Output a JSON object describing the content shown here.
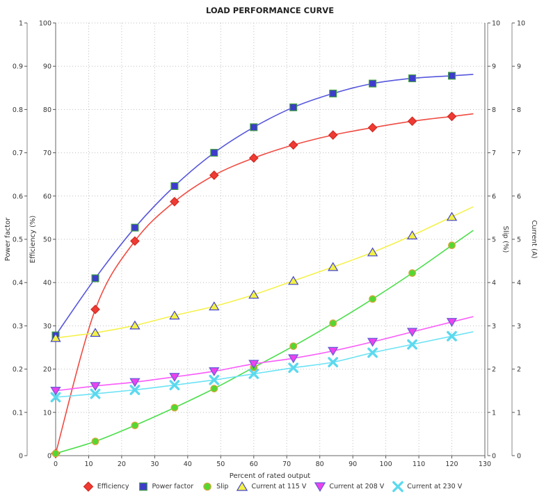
{
  "title": "LOAD PERFORMANCE CURVE",
  "chart_data": {
    "type": "line",
    "title": "LOAD PERFORMANCE CURVE",
    "xlabel": "Percent of rated output",
    "xlim": [
      0,
      130
    ],
    "x_tick_labels": [
      "0",
      "10",
      "20",
      "30",
      "40",
      "50",
      "60",
      "70",
      "80",
      "90",
      "100",
      "110",
      "120",
      "130"
    ],
    "grid": "dotted, both directions, every 10 units",
    "legend_position": "bottom-center",
    "x": [
      0,
      12,
      24,
      36,
      48,
      60,
      72,
      84,
      96,
      108,
      120
    ],
    "axes": [
      {
        "id": "pf",
        "label": "Power factor",
        "side": "left-outer",
        "range": [
          0,
          1
        ],
        "ticks": [
          "1",
          "0.9",
          "0.8",
          "0.7",
          "0.6",
          "0.5",
          "0.4",
          "0.3",
          "0.2",
          "0.1",
          "0"
        ]
      },
      {
        "id": "eff",
        "label": "Efficiency (%)",
        "side": "left-inner",
        "range": [
          0,
          100
        ],
        "ticks": [
          "100",
          "90",
          "80",
          "70",
          "60",
          "50",
          "40",
          "30",
          "20",
          "10",
          "0"
        ]
      },
      {
        "id": "slip",
        "label": "Slip (%)",
        "side": "right-inner",
        "range": [
          0,
          10
        ],
        "ticks": [
          "10",
          "9",
          "8",
          "7",
          "6",
          "5",
          "4",
          "3",
          "2",
          "1",
          "0"
        ]
      },
      {
        "id": "cur",
        "label": "Current (A)",
        "side": "right-outer",
        "range": [
          0,
          10
        ],
        "ticks": [
          "10",
          "9",
          "8",
          "7",
          "6",
          "5",
          "4",
          "3",
          "2",
          "1",
          "0"
        ]
      }
    ],
    "series": [
      {
        "name": "Efficiency",
        "axis": "eff",
        "marker": "diamond",
        "line_color": "#f04a41",
        "marker_fill": "#ee3b33",
        "marker_edge": "#d02a22",
        "values": [
          0.5,
          33.8,
          49.6,
          58.7,
          64.8,
          68.8,
          71.8,
          74.1,
          75.8,
          77.3,
          78.4
        ]
      },
      {
        "name": "Power factor",
        "axis": "pf",
        "marker": "square",
        "line_color": "#5656dd",
        "marker_fill": "#3d3ccd",
        "marker_edge": "#3f9e3f",
        "values": [
          0.278,
          0.41,
          0.527,
          0.623,
          0.7,
          0.759,
          0.805,
          0.837,
          0.86,
          0.872,
          0.878
        ]
      },
      {
        "name": "Slip",
        "axis": "slip",
        "marker": "circle",
        "line_color": "#4ade4a",
        "marker_fill": "#53d832",
        "marker_edge": "#dca43c",
        "values": [
          0.05,
          0.33,
          0.7,
          1.11,
          1.55,
          2.04,
          2.53,
          3.06,
          3.62,
          4.22,
          4.86
        ]
      },
      {
        "name": "Current at 115 V",
        "axis": "cur",
        "marker": "triangle-up",
        "line_color": "#f5f14b",
        "marker_fill": "#f3f145",
        "marker_edge": "#4343cd",
        "values": [
          2.72,
          2.84,
          3.01,
          3.24,
          3.45,
          3.72,
          4.04,
          4.36,
          4.7,
          5.09,
          5.52
        ]
      },
      {
        "name": "Current at 208 V",
        "axis": "cur",
        "marker": "triangle-down",
        "line_color": "#fa5afa",
        "marker_fill": "#ee41ee",
        "marker_edge": "#5f5fd6",
        "values": [
          1.5,
          1.61,
          1.7,
          1.82,
          1.95,
          2.12,
          2.25,
          2.42,
          2.63,
          2.86,
          3.09
        ]
      },
      {
        "name": "Current at 230 V",
        "axis": "cur",
        "marker": "x",
        "line_color": "#6be2f4",
        "marker_fill": "#5cd9ee",
        "marker_edge": "#5cd9ee",
        "values": [
          1.35,
          1.43,
          1.52,
          1.63,
          1.75,
          1.89,
          2.03,
          2.16,
          2.38,
          2.57,
          2.76
        ]
      }
    ]
  }
}
